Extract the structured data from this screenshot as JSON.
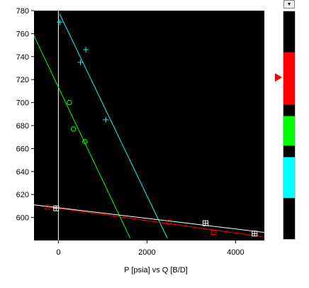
{
  "chart_data": {
    "type": "scatter",
    "title": "",
    "xlabel": "P [psia] vs Q [B/D]",
    "ylabel": "",
    "xlim": [
      -550,
      4650
    ],
    "ylim": [
      580,
      780
    ],
    "xticks": [
      0,
      2000,
      4000
    ],
    "yticks": [
      600,
      620,
      640,
      660,
      680,
      700,
      720,
      740,
      760,
      780
    ],
    "grid": false,
    "background": "#000000",
    "series": [
      {
        "color": "#00ffff",
        "marker": "plus",
        "points": [
          [
            30,
            770
          ],
          [
            500,
            735
          ],
          [
            620,
            746
          ],
          [
            1070,
            685
          ]
        ],
        "line": [
          [
            30,
            777
          ],
          [
            2460,
            582
          ]
        ]
      },
      {
        "color": "#00ff00",
        "marker": "circle",
        "points": [
          [
            250,
            700
          ],
          [
            340,
            677
          ],
          [
            600,
            666
          ]
        ],
        "line": [
          [
            -550,
            758
          ],
          [
            1620,
            582
          ]
        ]
      },
      {
        "color": "#ff0000",
        "marker": "square",
        "points": [
          [
            -250,
            609
          ],
          [
            2500,
            596
          ],
          [
            3500,
            587
          ]
        ],
        "line": [
          [
            -550,
            611
          ],
          [
            4650,
            583
          ]
        ]
      },
      {
        "color": "#ffffff",
        "marker": "square-cross",
        "points": [
          [
            -50,
            608
          ],
          [
            3320,
            595
          ],
          [
            4430,
            586
          ]
        ],
        "line": [
          [
            -550,
            611
          ],
          [
            4650,
            587
          ]
        ]
      }
    ],
    "vertical_line_x": 0,
    "color_bar": {
      "segments": [
        {
          "color": "#000000",
          "from": 0.0,
          "to": 0.18
        },
        {
          "color": "#ff0000",
          "from": 0.18,
          "to": 0.41
        },
        {
          "color": "#000000",
          "from": 0.41,
          "to": 0.46
        },
        {
          "color": "#00ff00",
          "from": 0.46,
          "to": 0.59
        },
        {
          "color": "#000000",
          "from": 0.59,
          "to": 0.64
        },
        {
          "color": "#00ffff",
          "from": 0.64,
          "to": 0.82
        },
        {
          "color": "#000000",
          "from": 0.82,
          "to": 1.0
        }
      ],
      "pointer_color": "#ff0000",
      "pointer_fraction": 0.29
    }
  },
  "ui": {
    "dropdown_icon": "chevron-down-icon"
  }
}
